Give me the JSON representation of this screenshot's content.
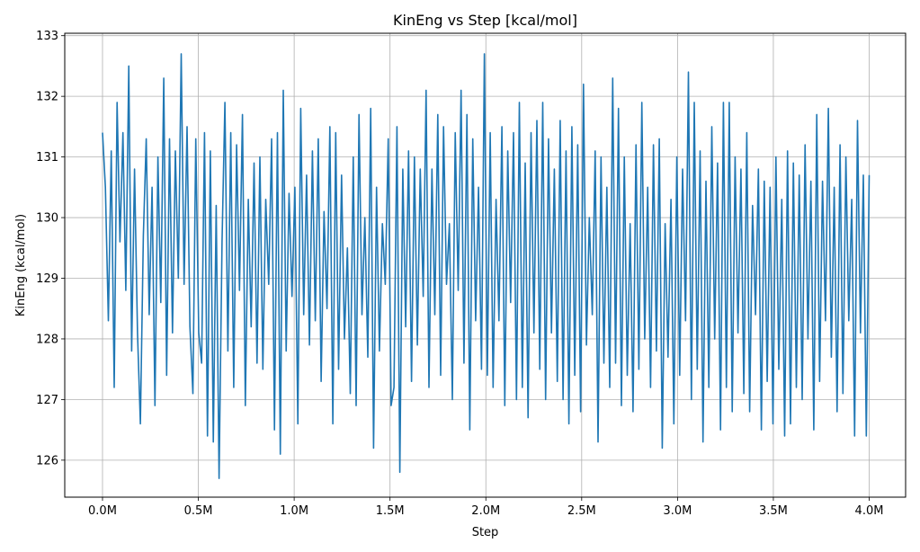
{
  "chart_data": {
    "type": "line",
    "title": "KinEng vs Step [kcal/mol]",
    "xlabel": "Step",
    "ylabel": "KinEng (kcal/mol)",
    "xlim": [
      -197000,
      4190000
    ],
    "ylim": [
      125.39,
      133.04
    ],
    "grid": true,
    "x_ticks": [
      0,
      500000,
      1000000,
      1500000,
      2000000,
      2500000,
      3000000,
      3500000,
      4000000
    ],
    "x_tick_labels": [
      "0.0M",
      "0.5M",
      "1.0M",
      "1.5M",
      "2.0M",
      "2.5M",
      "3.0M",
      "3.5M",
      "4.0M"
    ],
    "y_ticks": [
      126,
      127,
      128,
      129,
      130,
      131,
      132,
      133
    ],
    "y_tick_labels": [
      "126",
      "127",
      "128",
      "129",
      "130",
      "131",
      "132",
      "133"
    ],
    "series": [
      {
        "name": "KinEng",
        "color": "#1f77b4",
        "x_start": 0,
        "x_step": 20000,
        "values": [
          131.4,
          130.5,
          128.3,
          131.1,
          127.2,
          131.9,
          129.6,
          131.4,
          128.8,
          132.5,
          127.8,
          130.8,
          128.1,
          126.6,
          129.7,
          131.3,
          128.4,
          130.5,
          126.9,
          131.0,
          128.6,
          132.3,
          127.4,
          131.3,
          128.1,
          131.1,
          129.0,
          132.7,
          128.9,
          131.5,
          128.2,
          127.1,
          131.3,
          128.1,
          127.6,
          131.4,
          126.4,
          131.1,
          126.3,
          130.2,
          125.7,
          129.6,
          131.9,
          127.8,
          131.4,
          127.2,
          131.2,
          128.8,
          131.7,
          126.9,
          130.3,
          128.2,
          130.9,
          127.6,
          131.0,
          127.5,
          130.3,
          128.9,
          131.3,
          126.5,
          131.4,
          126.1,
          132.1,
          127.8,
          130.4,
          128.7,
          130.5,
          126.6,
          131.8,
          128.4,
          130.7,
          127.9,
          131.1,
          128.3,
          131.3,
          127.3,
          130.1,
          128.5,
          131.5,
          126.6,
          131.4,
          127.5,
          130.7,
          128.0,
          129.5,
          127.1,
          131.0,
          126.9,
          131.7,
          128.4,
          130.0,
          127.7,
          131.8,
          126.2,
          130.5,
          127.8,
          129.9,
          128.9,
          131.3,
          126.9,
          127.2,
          131.5,
          125.8,
          130.8,
          128.2,
          131.1,
          127.3,
          131.0,
          127.9,
          130.8,
          128.7,
          132.1,
          127.2,
          130.8,
          128.4,
          131.7,
          127.4,
          131.5,
          128.9,
          129.9,
          127.0,
          131.4,
          128.8,
          132.1,
          127.6,
          131.7,
          126.5,
          131.3,
          128.3,
          130.5,
          127.5,
          132.7,
          127.4,
          131.4,
          127.2,
          130.3,
          128.3,
          131.5,
          126.9,
          131.1,
          128.6,
          131.4,
          127.0,
          131.9,
          127.2,
          130.9,
          126.7,
          131.4,
          128.1,
          131.6,
          127.5,
          131.9,
          127.0,
          131.3,
          128.1,
          130.8,
          127.3,
          131.6,
          127.0,
          131.1,
          126.6,
          131.5,
          127.4,
          131.2,
          126.8,
          132.2,
          127.9,
          130.0,
          128.4,
          131.1,
          126.3,
          131.0,
          127.6,
          130.5,
          127.2,
          132.3,
          127.6,
          131.8,
          126.9,
          131.0,
          127.4,
          129.9,
          126.8,
          131.2,
          127.5,
          131.9,
          128.0,
          130.5,
          127.2,
          131.2,
          127.8,
          131.3,
          126.2,
          129.9,
          127.7,
          130.3,
          126.6,
          131.0,
          127.4,
          130.8,
          128.3,
          132.4,
          127.0,
          131.9,
          127.5,
          131.1,
          126.3,
          130.6,
          127.2,
          131.5,
          128.0,
          130.9,
          126.5,
          131.9,
          127.2,
          131.9,
          126.8,
          131.0,
          128.1,
          130.8,
          127.1,
          131.4,
          126.8,
          130.2,
          128.4,
          130.8,
          126.5,
          130.6,
          127.3,
          130.5,
          126.6,
          131.0,
          127.5,
          130.3,
          126.4,
          131.1,
          126.6,
          130.9,
          127.2,
          130.7,
          127.0,
          131.2,
          128.0,
          130.6,
          126.5,
          131.7,
          127.3,
          130.6,
          128.3,
          131.8,
          127.7,
          130.5,
          126.8,
          131.2,
          127.1,
          131.0,
          128.3,
          130.3,
          126.4,
          131.6,
          128.1,
          130.7,
          126.4,
          130.7
        ]
      }
    ]
  }
}
